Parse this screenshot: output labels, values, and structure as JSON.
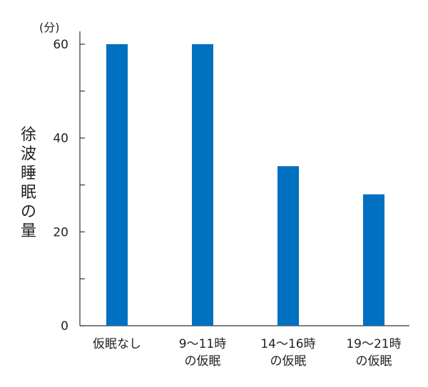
{
  "chart_data": {
    "type": "bar",
    "unit_label": "(分)",
    "ylabel": "徐波睡眠の量",
    "xlabel": "",
    "ylim": [
      0,
      60
    ],
    "yticks": [
      0,
      20,
      40,
      60
    ],
    "minor_yticks": [
      10,
      30,
      50
    ],
    "grid": false,
    "legend": "none",
    "categories": [
      [
        "仮眠なし"
      ],
      [
        "9〜11時",
        "の仮眠"
      ],
      [
        "14〜16時",
        "の仮眠"
      ],
      [
        "19〜21時",
        "の仮眠"
      ]
    ],
    "values": [
      60,
      60,
      34,
      28
    ],
    "bar_color": "#0070c0",
    "axis_color": "#333333"
  }
}
